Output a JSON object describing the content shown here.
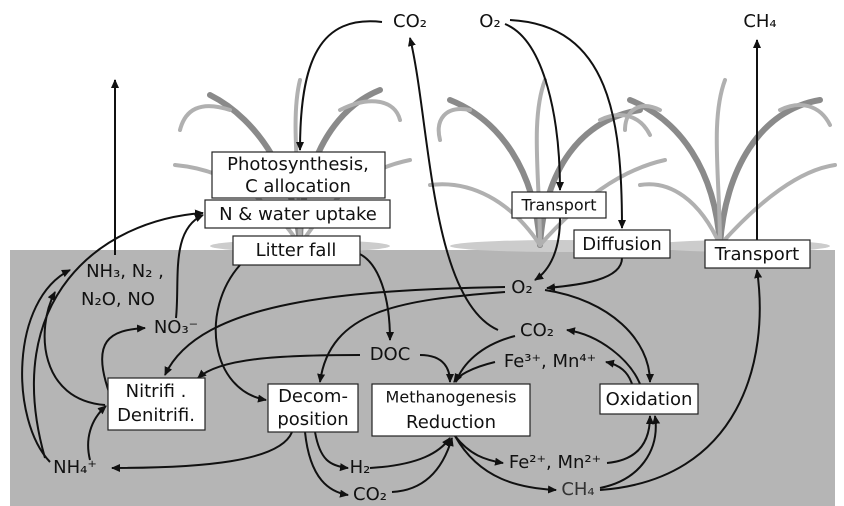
{
  "boxes": [
    {
      "lines": [
        "Photosynthesis,",
        "C allocation"
      ]
    },
    {
      "lines": [
        "N & water uptake"
      ]
    },
    {
      "lines": [
        "Litter fall"
      ]
    },
    {
      "lines": [
        "Transport"
      ]
    },
    {
      "lines": [
        "Diffusion"
      ]
    },
    {
      "lines": [
        "Transport"
      ]
    },
    {
      "lines": [
        "Nitrifi .",
        "Denitrifi."
      ]
    },
    {
      "lines": [
        "Decom-",
        "position"
      ]
    },
    {
      "lines": [
        "Methanogenesis",
        "Reduction"
      ]
    },
    {
      "lines": [
        "Oxidation"
      ]
    }
  ],
  "labels": [
    "CO₂",
    "O₂",
    "CH₄",
    "NH₃, N₂ ,",
    "N₂O, NO",
    "NO₃⁻",
    "O₂",
    "CO₂",
    "Fe³⁺, Mn⁴⁺",
    "DOC",
    "NH₄⁺",
    "H₂",
    "CO₂",
    "Fe²⁺, Mn²⁺",
    "CH₄"
  ]
}
